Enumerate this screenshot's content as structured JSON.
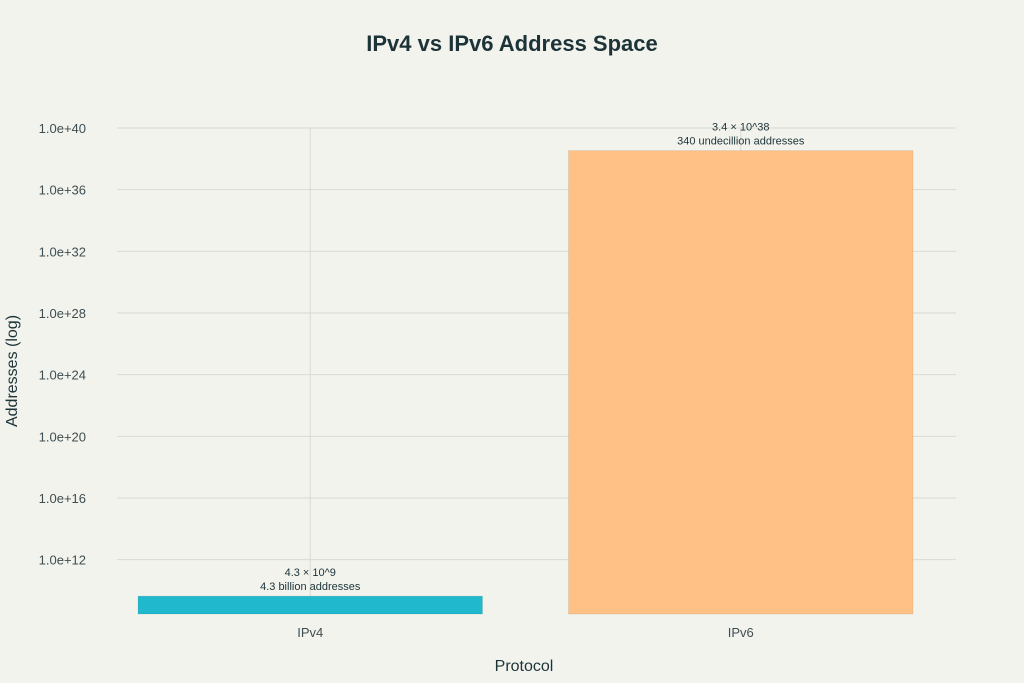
{
  "chart_data": {
    "type": "bar",
    "title": "IPv4 vs IPv6 Address Space",
    "xlabel": "Protocol",
    "ylabel": "Addresses (log)",
    "scale": "log",
    "categories": [
      "IPv4",
      "IPv6"
    ],
    "values": [
      4300000000.0,
      3.4e+38
    ],
    "colors": [
      "#1fb8cd",
      "#ffc185"
    ],
    "data_labels": [
      [
        "4.3 × 10^9",
        "4.3 billion addresses"
      ],
      [
        "3.4 × 10^38",
        "340 undecillion addresses"
      ]
    ],
    "yticks": [
      1000000000000.0,
      1e+16,
      1e+20,
      1e+24,
      1e+28,
      1e+32,
      1e+36,
      1e+40
    ],
    "ytick_labels": [
      "1.0e+12",
      "1.0e+16",
      "1.0e+20",
      "1.0e+24",
      "1.0e+28",
      "1.0e+32",
      "1.0e+36",
      "1.0e+40"
    ],
    "ylim": [
      300000000.0,
      1e+40
    ],
    "grid": true,
    "legend": "none"
  }
}
